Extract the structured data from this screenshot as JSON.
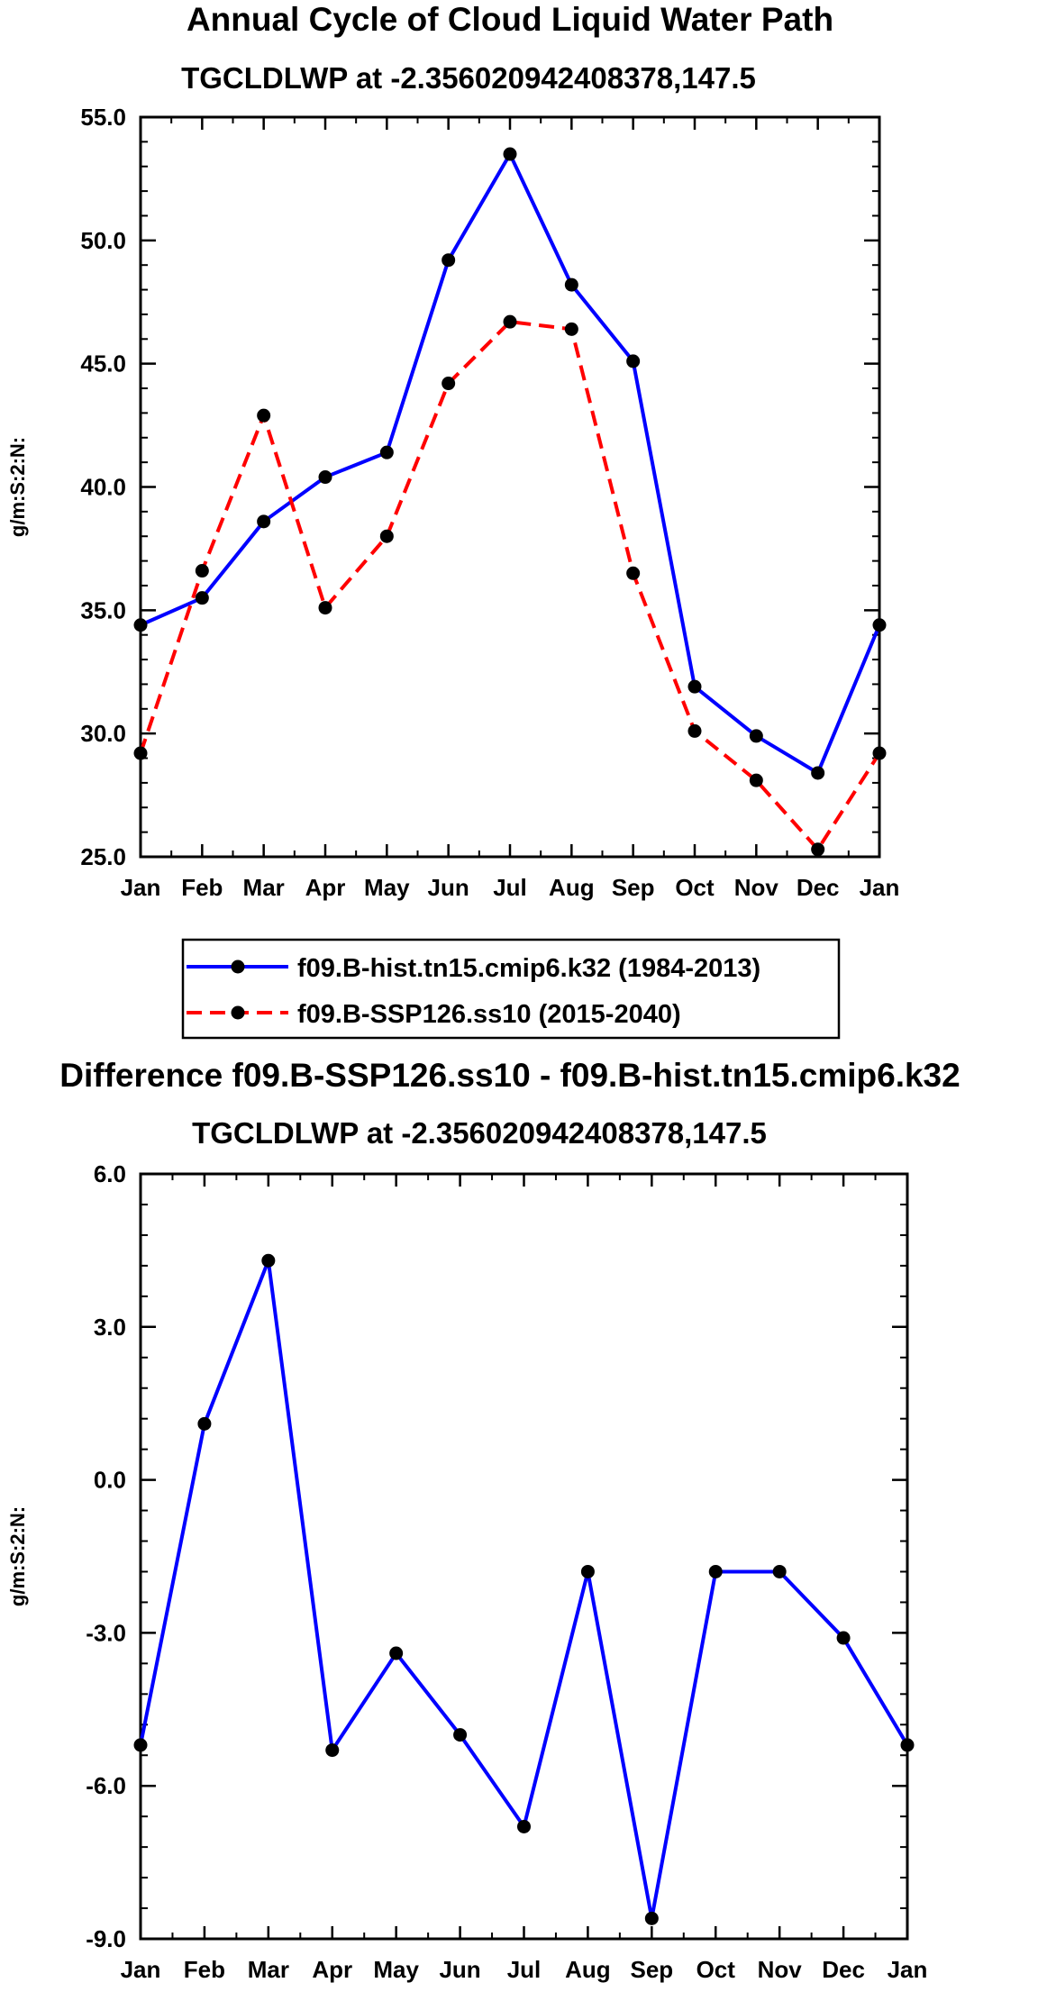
{
  "chart_data": [
    {
      "type": "line",
      "title": "Annual Cycle of Cloud Liquid Water Path",
      "subtitle": "TGCLDLWP at -2.356020942408378,147.5",
      "xlabel": "",
      "ylabel": "g/m:S:2:N:",
      "categories": [
        "Jan",
        "Feb",
        "Mar",
        "Apr",
        "May",
        "Jun",
        "Jul",
        "Aug",
        "Sep",
        "Oct",
        "Nov",
        "Dec",
        "Jan"
      ],
      "ylim": [
        25.0,
        55.0
      ],
      "yticks": [
        "25.0",
        "30.0",
        "35.0",
        "40.0",
        "45.0",
        "50.0",
        "55.0"
      ],
      "grid": false,
      "legend_position": "below",
      "series": [
        {
          "name": "f09.B-hist.tn15.cmip6.k32 (1984-2013)",
          "color": "#0000ff",
          "dash": "solid",
          "values": [
            34.4,
            35.5,
            38.6,
            40.4,
            41.4,
            49.2,
            53.5,
            48.2,
            45.1,
            31.9,
            29.9,
            28.4,
            34.4
          ]
        },
        {
          "name": "f09.B-SSP126.ss10 (2015-2040)",
          "color": "#ff0000",
          "dash": "dashed",
          "values": [
            29.2,
            36.6,
            42.9,
            35.1,
            38.0,
            44.2,
            46.7,
            46.4,
            36.5,
            30.1,
            28.1,
            25.3,
            29.2
          ]
        }
      ]
    },
    {
      "type": "line",
      "title": "Difference f09.B-SSP126.ss10 - f09.B-hist.tn15.cmip6.k32",
      "subtitle": "TGCLDLWP at -2.356020942408378,147.5",
      "xlabel": "",
      "ylabel": "g/m:S:2:N:",
      "categories": [
        "Jan",
        "Feb",
        "Mar",
        "Apr",
        "May",
        "Jun",
        "Jul",
        "Aug",
        "Sep",
        "Oct",
        "Nov",
        "Dec",
        "Jan"
      ],
      "ylim": [
        -9.0,
        6.0
      ],
      "yticks": [
        "-9.0",
        "-6.0",
        "-3.0",
        "0.0",
        "3.0",
        "6.0"
      ],
      "grid": false,
      "series": [
        {
          "name": "Difference",
          "color": "#0000ff",
          "dash": "solid",
          "values": [
            -5.2,
            1.1,
            4.3,
            -5.3,
            -3.4,
            -5.0,
            -6.8,
            -1.8,
            -8.6,
            -1.8,
            -1.8,
            -3.1,
            -5.2
          ]
        }
      ]
    }
  ]
}
